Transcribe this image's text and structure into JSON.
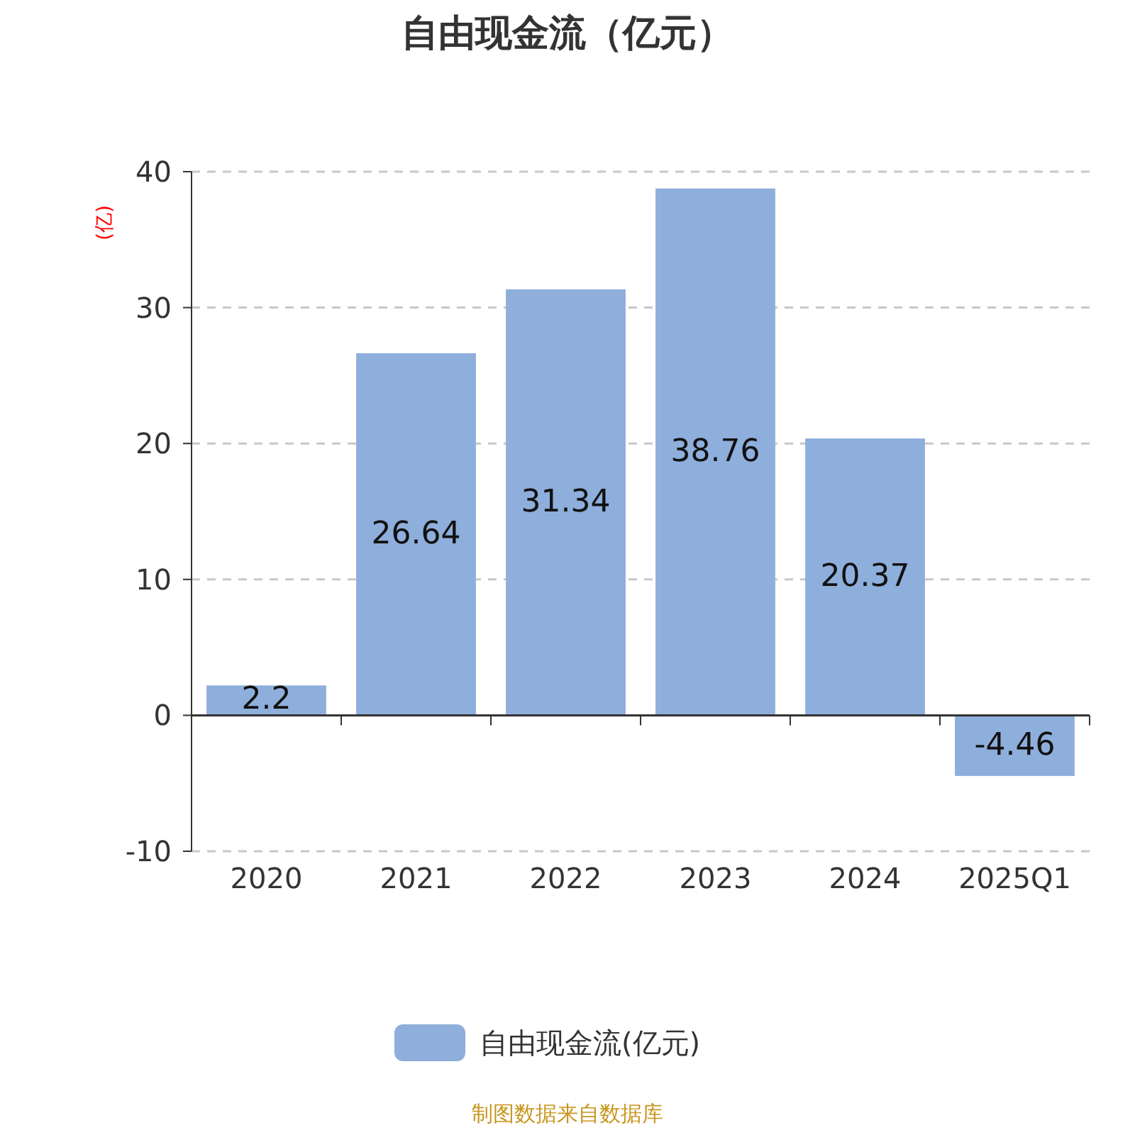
{
  "chart_data": {
    "type": "bar",
    "title": "自由现金流（亿元）",
    "ylabel": "(亿)",
    "categories": [
      "2020",
      "2021",
      "2022",
      "2023",
      "2024",
      "2025Q1"
    ],
    "series": [
      {
        "name": "自由现金流(亿元)",
        "color": "#8eaedb",
        "values": [
          2.2,
          26.64,
          31.34,
          38.76,
          20.37,
          -4.46
        ]
      }
    ],
    "ylim": [
      -10,
      40
    ],
    "yticks": [
      -10,
      0,
      10,
      20,
      30,
      40
    ],
    "grid": "y",
    "legend": "bottom",
    "data_labels": true,
    "annotations": [
      "制图数据来自数据库"
    ]
  }
}
